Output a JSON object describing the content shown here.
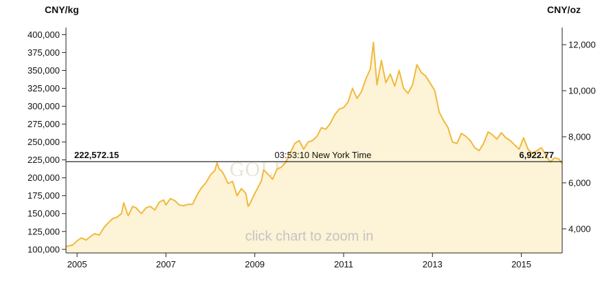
{
  "chart_data": {
    "type": "area",
    "title": "",
    "y_left_unit": "CNY/kg",
    "y_right_unit": "CNY/oz",
    "y_left_range": [
      95000,
      410000
    ],
    "y_right_range": [
      2953.5,
      12745.8
    ],
    "y_left_ticks": [
      "100,000",
      "125,000",
      "150,000",
      "175,000",
      "200,000",
      "225,000",
      "250,000",
      "275,000",
      "300,000",
      "325,000",
      "350,000",
      "375,000",
      "400,000"
    ],
    "y_left_tick_values": [
      100000,
      125000,
      150000,
      175000,
      200000,
      225000,
      250000,
      275000,
      300000,
      325000,
      350000,
      375000,
      400000
    ],
    "y_right_ticks": [
      "4,000",
      "6,000",
      "8,000",
      "10,000",
      "12,000"
    ],
    "y_right_tick_values": [
      4000,
      6000,
      8000,
      10000,
      12000
    ],
    "x_range": [
      2004.75,
      2015.92
    ],
    "x_ticks": [
      "2005",
      "2007",
      "2009",
      "2011",
      "2013",
      "2015"
    ],
    "x_tick_values": [
      2005,
      2007,
      2009,
      2011,
      2013,
      2015
    ],
    "crosshair": {
      "value_left": "222,572.15",
      "time": "03:53:10 New York Time",
      "value_right": "6,922.77",
      "y": 222572.15
    },
    "watermark": "GOLDPRICE.ORG",
    "zoom_hint": "click chart to zoom in",
    "line_color": "#f0b93c",
    "fill_color": "#fdf3d6",
    "series": [
      {
        "x": [
          2004.75,
          2004.9,
          2005.0,
          2005.1,
          2005.2,
          2005.3,
          2005.4,
          2005.5,
          2005.6,
          2005.7,
          2005.8,
          2005.9,
          2006.0,
          2006.05,
          2006.15,
          2006.25,
          2006.33,
          2006.4,
          2006.45,
          2006.55,
          2006.65,
          2006.75,
          2006.85,
          2006.95,
          2007.0,
          2007.1,
          2007.2,
          2007.3,
          2007.4,
          2007.5,
          2007.6,
          2007.7,
          2007.8,
          2007.9,
          2008.0,
          2008.1,
          2008.15,
          2008.2,
          2008.25,
          2008.3,
          2008.4,
          2008.5,
          2008.6,
          2008.7,
          2008.8,
          2008.85,
          2008.9,
          2009.0,
          2009.1,
          2009.15,
          2009.2,
          2009.3,
          2009.4,
          2009.5,
          2009.6,
          2009.7,
          2009.8,
          2009.9,
          2010.0,
          2010.1,
          2010.2,
          2010.3,
          2010.4,
          2010.5,
          2010.6,
          2010.7,
          2010.8,
          2010.9,
          2011.0,
          2011.1,
          2011.2,
          2011.3,
          2011.4,
          2011.5,
          2011.6,
          2011.67,
          2011.75,
          2011.85,
          2011.95,
          2012.05,
          2012.15,
          2012.25,
          2012.35,
          2012.45,
          2012.55,
          2012.65,
          2012.75,
          2012.85,
          2012.95,
          2013.05,
          2013.15,
          2013.25,
          2013.35,
          2013.45,
          2013.55,
          2013.65,
          2013.75,
          2013.85,
          2013.95,
          2014.05,
          2014.15,
          2014.25,
          2014.35,
          2014.45,
          2014.55,
          2014.65,
          2014.75,
          2014.85,
          2014.95,
          2015.05,
          2015.15,
          2015.25,
          2015.35,
          2015.45,
          2015.55,
          2015.65,
          2015.75,
          2015.85,
          2015.92
        ],
        "y": [
          104000,
          106000,
          112000,
          116000,
          113000,
          118000,
          122000,
          120000,
          130000,
          137000,
          143000,
          145000,
          150000,
          165000,
          147000,
          160000,
          158000,
          153000,
          150000,
          158000,
          160000,
          155000,
          166000,
          169000,
          162000,
          171000,
          168000,
          162000,
          161000,
          163000,
          163000,
          176000,
          186000,
          193000,
          204000,
          210000,
          221000,
          212000,
          210000,
          205000,
          192000,
          195000,
          175000,
          185000,
          178000,
          160000,
          165000,
          178000,
          190000,
          196000,
          211000,
          205000,
          198000,
          212000,
          215000,
          222000,
          235000,
          248000,
          252000,
          240000,
          250000,
          252000,
          258000,
          270000,
          268000,
          276000,
          288000,
          296000,
          298000,
          306000,
          325000,
          311000,
          320000,
          338000,
          352000,
          389000,
          330000,
          364000,
          333000,
          345000,
          328000,
          350000,
          325000,
          318000,
          330000,
          358000,
          347000,
          342000,
          332000,
          322000,
          292000,
          280000,
          270000,
          250000,
          248000,
          262000,
          258000,
          252000,
          242000,
          238000,
          248000,
          264000,
          260000,
          254000,
          263000,
          256000,
          252000,
          246000,
          240000,
          256000,
          240000,
          234000,
          238000,
          242000,
          232000,
          222000,
          228000,
          226000,
          220000
        ]
      }
    ]
  }
}
